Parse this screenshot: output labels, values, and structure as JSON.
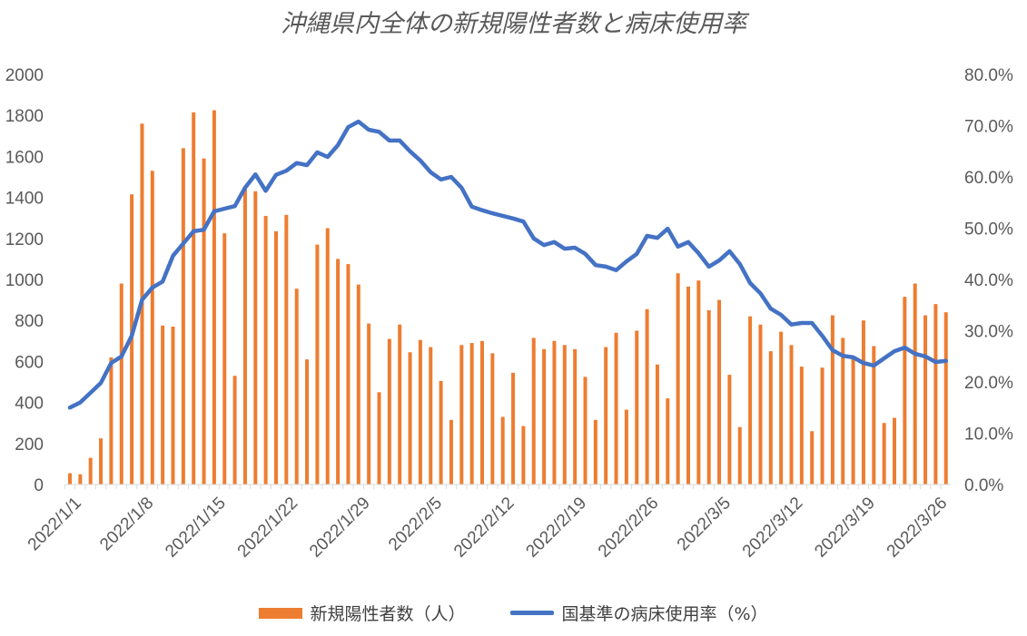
{
  "chart_data": {
    "type": "bar+line",
    "title": "沖縄県内全体の新規陽性者数と病床使用率",
    "categories": [
      "2022/1/1",
      "2022/1/2",
      "2022/1/3",
      "2022/1/4",
      "2022/1/5",
      "2022/1/6",
      "2022/1/7",
      "2022/1/8",
      "2022/1/9",
      "2022/1/10",
      "2022/1/11",
      "2022/1/12",
      "2022/1/13",
      "2022/1/14",
      "2022/1/15",
      "2022/1/16",
      "2022/1/17",
      "2022/1/18",
      "2022/1/19",
      "2022/1/20",
      "2022/1/21",
      "2022/1/22",
      "2022/1/23",
      "2022/1/24",
      "2022/1/25",
      "2022/1/26",
      "2022/1/27",
      "2022/1/28",
      "2022/1/29",
      "2022/1/30",
      "2022/1/31",
      "2022/2/1",
      "2022/2/2",
      "2022/2/3",
      "2022/2/4",
      "2022/2/5",
      "2022/2/6",
      "2022/2/7",
      "2022/2/8",
      "2022/2/9",
      "2022/2/10",
      "2022/2/11",
      "2022/2/12",
      "2022/2/13",
      "2022/2/14",
      "2022/2/15",
      "2022/2/16",
      "2022/2/17",
      "2022/2/18",
      "2022/2/19",
      "2022/2/20",
      "2022/2/21",
      "2022/2/22",
      "2022/2/23",
      "2022/2/24",
      "2022/2/25",
      "2022/2/26",
      "2022/2/27",
      "2022/2/28",
      "2022/3/1",
      "2022/3/2",
      "2022/3/3",
      "2022/3/4",
      "2022/3/5",
      "2022/3/6",
      "2022/3/7",
      "2022/3/8",
      "2022/3/9",
      "2022/3/10",
      "2022/3/11",
      "2022/3/12",
      "2022/3/13",
      "2022/3/14",
      "2022/3/15",
      "2022/3/16",
      "2022/3/17",
      "2022/3/18",
      "2022/3/19",
      "2022/3/20",
      "2022/3/21",
      "2022/3/22",
      "2022/3/23",
      "2022/3/24",
      "2022/3/25",
      "2022/3/26",
      "2022/3/27"
    ],
    "x_tick_labels": [
      "2022/1/1",
      "2022/1/8",
      "2022/1/15",
      "2022/1/22",
      "2022/1/29",
      "2022/2/5",
      "2022/2/12",
      "2022/2/19",
      "2022/2/26",
      "2022/3/5",
      "2022/3/12",
      "2022/3/19",
      "2022/3/26"
    ],
    "y_left": {
      "ylim": [
        0,
        2000
      ],
      "ticks": [
        "0",
        "200",
        "400",
        "600",
        "800",
        "1000",
        "1200",
        "1400",
        "1600",
        "1800",
        "2000"
      ]
    },
    "y_right": {
      "ylim": [
        0,
        80
      ],
      "ticks": [
        "0.0%",
        "10.0%",
        "20.0%",
        "30.0%",
        "40.0%",
        "50.0%",
        "60.0%",
        "70.0%",
        "80.0%"
      ]
    },
    "series": [
      {
        "name": "新規陽性者数（人）",
        "type": "bar",
        "axis": "left",
        "color": "#ED7D31",
        "values": [
          55,
          50,
          130,
          225,
          620,
          980,
          1415,
          1760,
          1530,
          775,
          770,
          1640,
          1815,
          1590,
          1825,
          1225,
          530,
          1440,
          1430,
          1310,
          1235,
          1315,
          955,
          610,
          1170,
          1250,
          1100,
          1075,
          975,
          785,
          450,
          710,
          780,
          645,
          705,
          670,
          505,
          315,
          680,
          690,
          700,
          640,
          330,
          545,
          285,
          715,
          660,
          700,
          680,
          660,
          525,
          315,
          670,
          740,
          365,
          750,
          855,
          585,
          420,
          1030,
          965,
          995,
          850,
          900,
          535,
          280,
          820,
          780,
          650,
          745,
          680,
          575,
          260,
          570,
          825,
          715,
          615,
          800,
          675,
          300,
          325,
          915,
          980,
          825,
          880,
          840
        ]
      },
      {
        "name": "国基準の病床使用率（%）",
        "type": "line",
        "axis": "right",
        "color": "#4472C4",
        "values": [
          15,
          16,
          17.9,
          19.8,
          23.7,
          25,
          29,
          36,
          38.4,
          39.6,
          44.6,
          47,
          49.4,
          49.7,
          53.3,
          53.8,
          54.3,
          57.9,
          60.5,
          57.3,
          60.4,
          61.2,
          62.7,
          62.3,
          64.8,
          63.9,
          66.2,
          69.7,
          70.8,
          69.2,
          68.8,
          67.1,
          67.1,
          65,
          63.2,
          60.9,
          59.5,
          60,
          57.9,
          54.2,
          53.5,
          52.9,
          52.4,
          51.9,
          51.3,
          48,
          46.7,
          47.3,
          46,
          46.2,
          45,
          42.8,
          42.5,
          41.8,
          43.5,
          45,
          48.5,
          48.1,
          49.9,
          46.4,
          47.3,
          45.1,
          42.5,
          43.7,
          45.5,
          43,
          39.3,
          37.3,
          34.3,
          33.1,
          31.2,
          31.5,
          31.5,
          29,
          26.2,
          25.1,
          24.8,
          23.7,
          23.2,
          24.6,
          26,
          26.7,
          25.5,
          25,
          23.9,
          24.1
        ]
      }
    ],
    "legend": [
      "新規陽性者数（人）",
      "国基準の病床使用率（%）"
    ],
    "legend_position": "bottom",
    "grid": false
  }
}
